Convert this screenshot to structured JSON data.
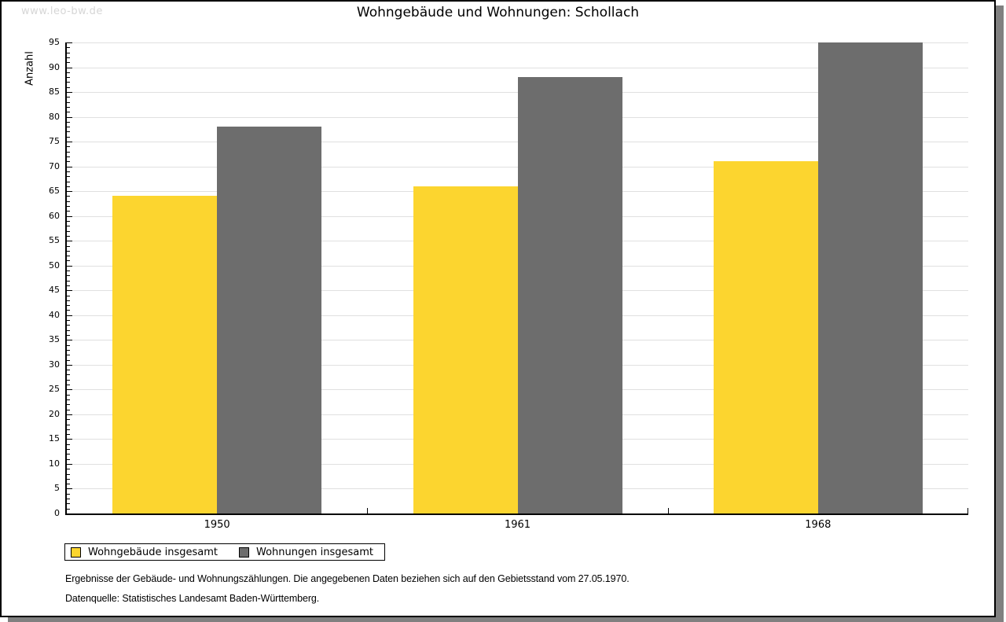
{
  "watermark": "www.leo-bw.de",
  "chart_data": {
    "type": "bar",
    "title": "Wohngebäude und Wohnungen: Schollach",
    "ylabel": "Anzahl",
    "xlabel": "",
    "categories": [
      "1950",
      "1961",
      "1968"
    ],
    "series": [
      {
        "name": "Wohngebäude insgesamt",
        "color": "#fcd52f",
        "values": [
          64,
          66,
          71
        ]
      },
      {
        "name": "Wohnungen insgesamt",
        "color": "#6d6d6d",
        "values": [
          78,
          88,
          95
        ]
      }
    ],
    "ylim": [
      0,
      95
    ],
    "ytick_step": 5,
    "minor_tick_step": 1,
    "grid": "horizontal-light",
    "legend_position": "bottom-left"
  },
  "footer": {
    "note": "Ergebnisse der Gebäude- und Wohnungszählungen. Die angegebenen Daten beziehen sich auf den Gebietsstand vom 27.05.1970.",
    "source": "Datenquelle: Statistisches Landesamt Baden-Württemberg."
  },
  "colors": {
    "grid": "#e0e0e0",
    "axis": "#000000",
    "watermark": "#d6d6d6",
    "shadow": "#808080",
    "page_border": "#000000"
  }
}
